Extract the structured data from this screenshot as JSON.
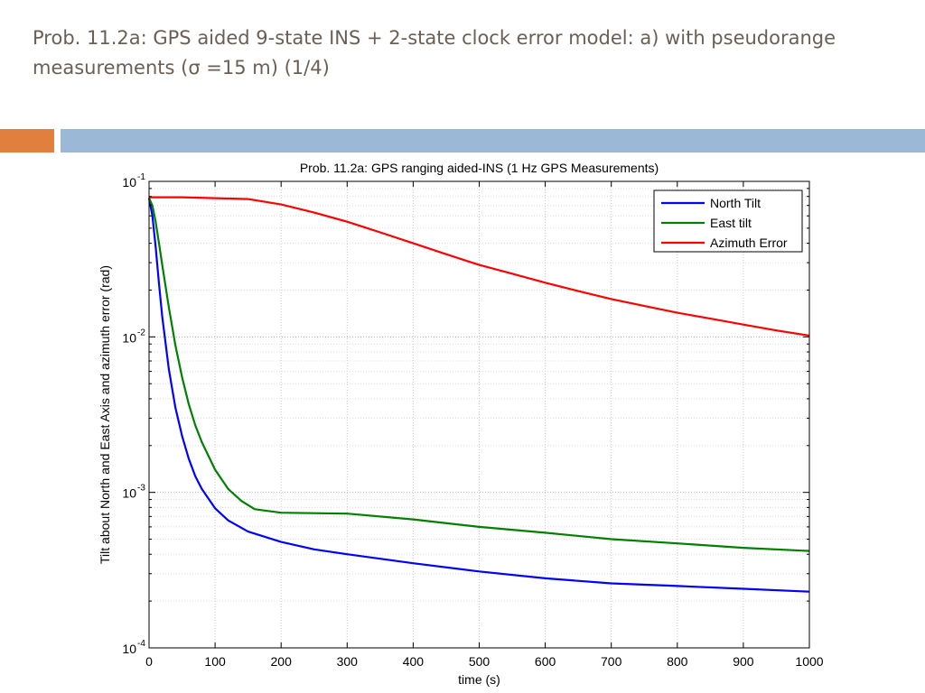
{
  "slide": {
    "title": "Prob. 11.2a: GPS aided 9-state INS + 2-state clock error model: a) with pseudorange measurements (σ =15 m)  (1/4)",
    "accent_orange": "#e07f3e",
    "accent_blue": "#9bb9d6",
    "title_color": "#6b5f55"
  },
  "chart_data": {
    "type": "line",
    "title": "Prob. 11.2a: GPS ranging aided-INS (1 Hz GPS Measurements)",
    "xlabel": "time (s)",
    "ylabel": "Tilt about North and East Axis and azimuth error (rad)",
    "xlim": [
      0,
      1000
    ],
    "ylim": [
      0.0001,
      0.1
    ],
    "yscale": "log",
    "xticks": [
      0,
      100,
      200,
      300,
      400,
      500,
      600,
      700,
      800,
      900,
      1000
    ],
    "yticks": [
      {
        "base": "10",
        "exp": "-1",
        "value": 0.1
      },
      {
        "base": "10",
        "exp": "-2",
        "value": 0.01
      },
      {
        "base": "10",
        "exp": "-3",
        "value": 0.001
      },
      {
        "base": "10",
        "exp": "-4",
        "value": 0.0001
      }
    ],
    "grid": true,
    "legend_position": "top-right",
    "series": [
      {
        "name": "North Tilt",
        "color": "#0000ff",
        "x": [
          0,
          5,
          10,
          15,
          20,
          30,
          40,
          50,
          60,
          70,
          80,
          100,
          120,
          150,
          200,
          250,
          300,
          400,
          500,
          600,
          700,
          800,
          900,
          1000
        ],
        "y": [
          0.078,
          0.06,
          0.038,
          0.022,
          0.0135,
          0.0062,
          0.0035,
          0.0023,
          0.00165,
          0.00127,
          0.00105,
          0.00079,
          0.00066,
          0.00056,
          0.00048,
          0.00043,
          0.0004,
          0.00035,
          0.00031,
          0.00028,
          0.00026,
          0.00025,
          0.00024,
          0.00023
        ]
      },
      {
        "name": "East tilt",
        "color": "#008000",
        "x": [
          0,
          5,
          10,
          15,
          20,
          30,
          40,
          50,
          60,
          70,
          80,
          100,
          120,
          140,
          160,
          200,
          300,
          400,
          500,
          600,
          700,
          800,
          900,
          1000
        ],
        "y": [
          0.078,
          0.07,
          0.055,
          0.04,
          0.029,
          0.0155,
          0.0088,
          0.0055,
          0.0037,
          0.0027,
          0.0021,
          0.0014,
          0.00105,
          0.00088,
          0.00078,
          0.00074,
          0.00073,
          0.00067,
          0.0006,
          0.00055,
          0.0005,
          0.00047,
          0.00044,
          0.00042
        ]
      },
      {
        "name": "Azimuth Error",
        "color": "#ff0000",
        "x": [
          0,
          50,
          100,
          150,
          200,
          250,
          300,
          350,
          400,
          450,
          500,
          550,
          600,
          650,
          700,
          750,
          800,
          850,
          900,
          950,
          1000
        ],
        "y": [
          0.079,
          0.079,
          0.078,
          0.077,
          0.071,
          0.063,
          0.055,
          0.047,
          0.04,
          0.034,
          0.029,
          0.0255,
          0.0223,
          0.0197,
          0.0175,
          0.0158,
          0.0143,
          0.0131,
          0.012,
          0.011,
          0.0102
        ]
      }
    ]
  }
}
